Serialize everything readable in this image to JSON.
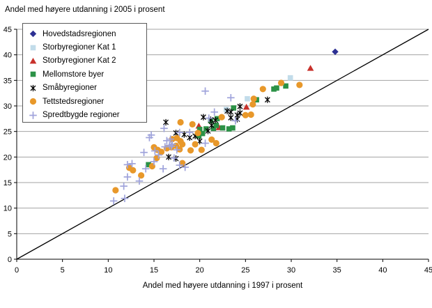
{
  "title": "Andel med høyere utdanning i 2005 i prosent",
  "chart_data": {
    "type": "scatter",
    "title": "Andel med høyere utdanning i 2005 i prosent",
    "xlabel": "Andel med høyere utdanning i 1997 i prosent",
    "ylabel": "Andel med høyere utdanning i 2005 i prosent",
    "xlim": [
      0,
      45
    ],
    "ylim": [
      0,
      45
    ],
    "xticks": [
      0,
      5,
      10,
      15,
      20,
      25,
      30,
      35,
      40,
      45
    ],
    "yticks": [
      0,
      5,
      10,
      15,
      20,
      25,
      30,
      35,
      40,
      45
    ],
    "grid": "horizontal-only",
    "gridline_color": "#a3a3a3",
    "axis_color": "#000000",
    "legend_position": "top-left",
    "reference_line": {
      "type": "identity",
      "from": [
        0,
        0
      ],
      "to": [
        45,
        45
      ],
      "color": "#000000"
    },
    "series": [
      {
        "name": "Hovedstadsregionen",
        "marker": "diamond",
        "color": "#2d3093",
        "points": [
          [
            34.8,
            40.6
          ]
        ]
      },
      {
        "name": "Storbyregioner Kat 1",
        "marker": "square",
        "color": "#c2dcea",
        "points": [
          [
            29.9,
            35.5
          ],
          [
            25.2,
            31.4
          ],
          [
            22.9,
            29.3
          ]
        ]
      },
      {
        "name": "Storbyregioner Kat 2",
        "marker": "triangle",
        "color": "#c8312b",
        "points": [
          [
            32.1,
            37.4
          ],
          [
            25.1,
            29.8
          ],
          [
            22.1,
            25.8
          ],
          [
            19.9,
            26.1
          ]
        ]
      },
      {
        "name": "Mellomstore byer",
        "marker": "square",
        "color": "#2c9247",
        "points": [
          [
            29.4,
            33.9
          ],
          [
            28.4,
            33.5
          ],
          [
            28.1,
            33.3
          ],
          [
            26.2,
            31.2
          ],
          [
            23.7,
            29.6
          ],
          [
            21.9,
            27.5
          ],
          [
            21.2,
            27.1
          ],
          [
            21.8,
            26.2
          ],
          [
            20.0,
            25.4
          ],
          [
            20.7,
            25.5
          ],
          [
            21.5,
            25.6
          ],
          [
            22.5,
            25.7
          ],
          [
            23.2,
            25.5
          ],
          [
            23.6,
            25.7
          ],
          [
            20.3,
            24.6
          ],
          [
            19.9,
            24.1
          ],
          [
            14.4,
            18.5
          ]
        ]
      },
      {
        "name": "Småbyregioner",
        "marker": "star",
        "color": "#000000",
        "points": [
          [
            27.4,
            31.2
          ],
          [
            24.4,
            29.9
          ],
          [
            23.0,
            29.0
          ],
          [
            23.4,
            28.8
          ],
          [
            24.4,
            28.6
          ],
          [
            24.1,
            28.2
          ],
          [
            23.4,
            27.7
          ],
          [
            24.1,
            27.4
          ],
          [
            21.2,
            27.3
          ],
          [
            21.7,
            27.2
          ],
          [
            20.4,
            27.8
          ],
          [
            16.3,
            26.8
          ],
          [
            21.3,
            26.2
          ],
          [
            20.9,
            25.1
          ],
          [
            17.4,
            24.7
          ],
          [
            18.3,
            24.4
          ],
          [
            19.5,
            24.1
          ],
          [
            18.9,
            23.8
          ],
          [
            20.0,
            23.1
          ],
          [
            16.6,
            20.0
          ],
          [
            17.4,
            19.7
          ]
        ]
      },
      {
        "name": "Tettstedsregioner",
        "marker": "circle",
        "color": "#e8982a",
        "points": [
          [
            30.9,
            34.1
          ],
          [
            28.9,
            34.5
          ],
          [
            26.9,
            33.3
          ],
          [
            25.9,
            31.4
          ],
          [
            25.8,
            30.3
          ],
          [
            25.6,
            28.3
          ],
          [
            25.0,
            28.2
          ],
          [
            22.4,
            27.8
          ],
          [
            19.2,
            26.4
          ],
          [
            17.9,
            26.8
          ],
          [
            19.8,
            24.7
          ],
          [
            21.3,
            23.4
          ],
          [
            21.8,
            22.7
          ],
          [
            19.5,
            22.5
          ],
          [
            20.2,
            21.4
          ],
          [
            19.0,
            21.3
          ],
          [
            17.0,
            23.5
          ],
          [
            17.5,
            23.7
          ],
          [
            17.9,
            23.1
          ],
          [
            18.1,
            22.5
          ],
          [
            17.4,
            22.2
          ],
          [
            16.9,
            21.9
          ],
          [
            17.8,
            21.5
          ],
          [
            16.4,
            21.7
          ],
          [
            15.0,
            21.9
          ],
          [
            15.4,
            21.4
          ],
          [
            15.8,
            21.0
          ],
          [
            15.3,
            19.8
          ],
          [
            14.8,
            18.2
          ],
          [
            18.1,
            18.8
          ],
          [
            13.6,
            16.4
          ],
          [
            12.7,
            17.4
          ],
          [
            12.3,
            17.9
          ],
          [
            10.8,
            13.5
          ]
        ]
      },
      {
        "name": "Spredtbygde regioner",
        "marker": "plus",
        "color": "#9fa3db",
        "points": [
          [
            20.6,
            32.9
          ],
          [
            23.4,
            31.6
          ],
          [
            23.9,
            27.1
          ],
          [
            21.6,
            28.8
          ],
          [
            21.0,
            27.6
          ],
          [
            18.9,
            24.8
          ],
          [
            17.8,
            24.8
          ],
          [
            20.6,
            22.7
          ],
          [
            16.8,
            23.5
          ],
          [
            17.0,
            22.5
          ],
          [
            16.7,
            22.3
          ],
          [
            17.5,
            21.4
          ],
          [
            14.5,
            23.8
          ],
          [
            16.4,
            23.2
          ],
          [
            16.9,
            22.1
          ],
          [
            16.2,
            22.0
          ],
          [
            16.1,
            25.6
          ],
          [
            14.7,
            24.3
          ],
          [
            13.9,
            20.9
          ],
          [
            15.1,
            21.2
          ],
          [
            15.5,
            20.4
          ],
          [
            15.0,
            19.1
          ],
          [
            16.0,
            17.7
          ],
          [
            17.8,
            18.4
          ],
          [
            18.4,
            18.0
          ],
          [
            17.2,
            19.8
          ],
          [
            14.1,
            17.7
          ],
          [
            13.4,
            15.3
          ],
          [
            12.6,
            18.7
          ],
          [
            12.1,
            18.5
          ],
          [
            12.1,
            16.1
          ],
          [
            11.7,
            14.3
          ],
          [
            10.6,
            11.4
          ],
          [
            11.8,
            11.9
          ]
        ]
      }
    ]
  }
}
